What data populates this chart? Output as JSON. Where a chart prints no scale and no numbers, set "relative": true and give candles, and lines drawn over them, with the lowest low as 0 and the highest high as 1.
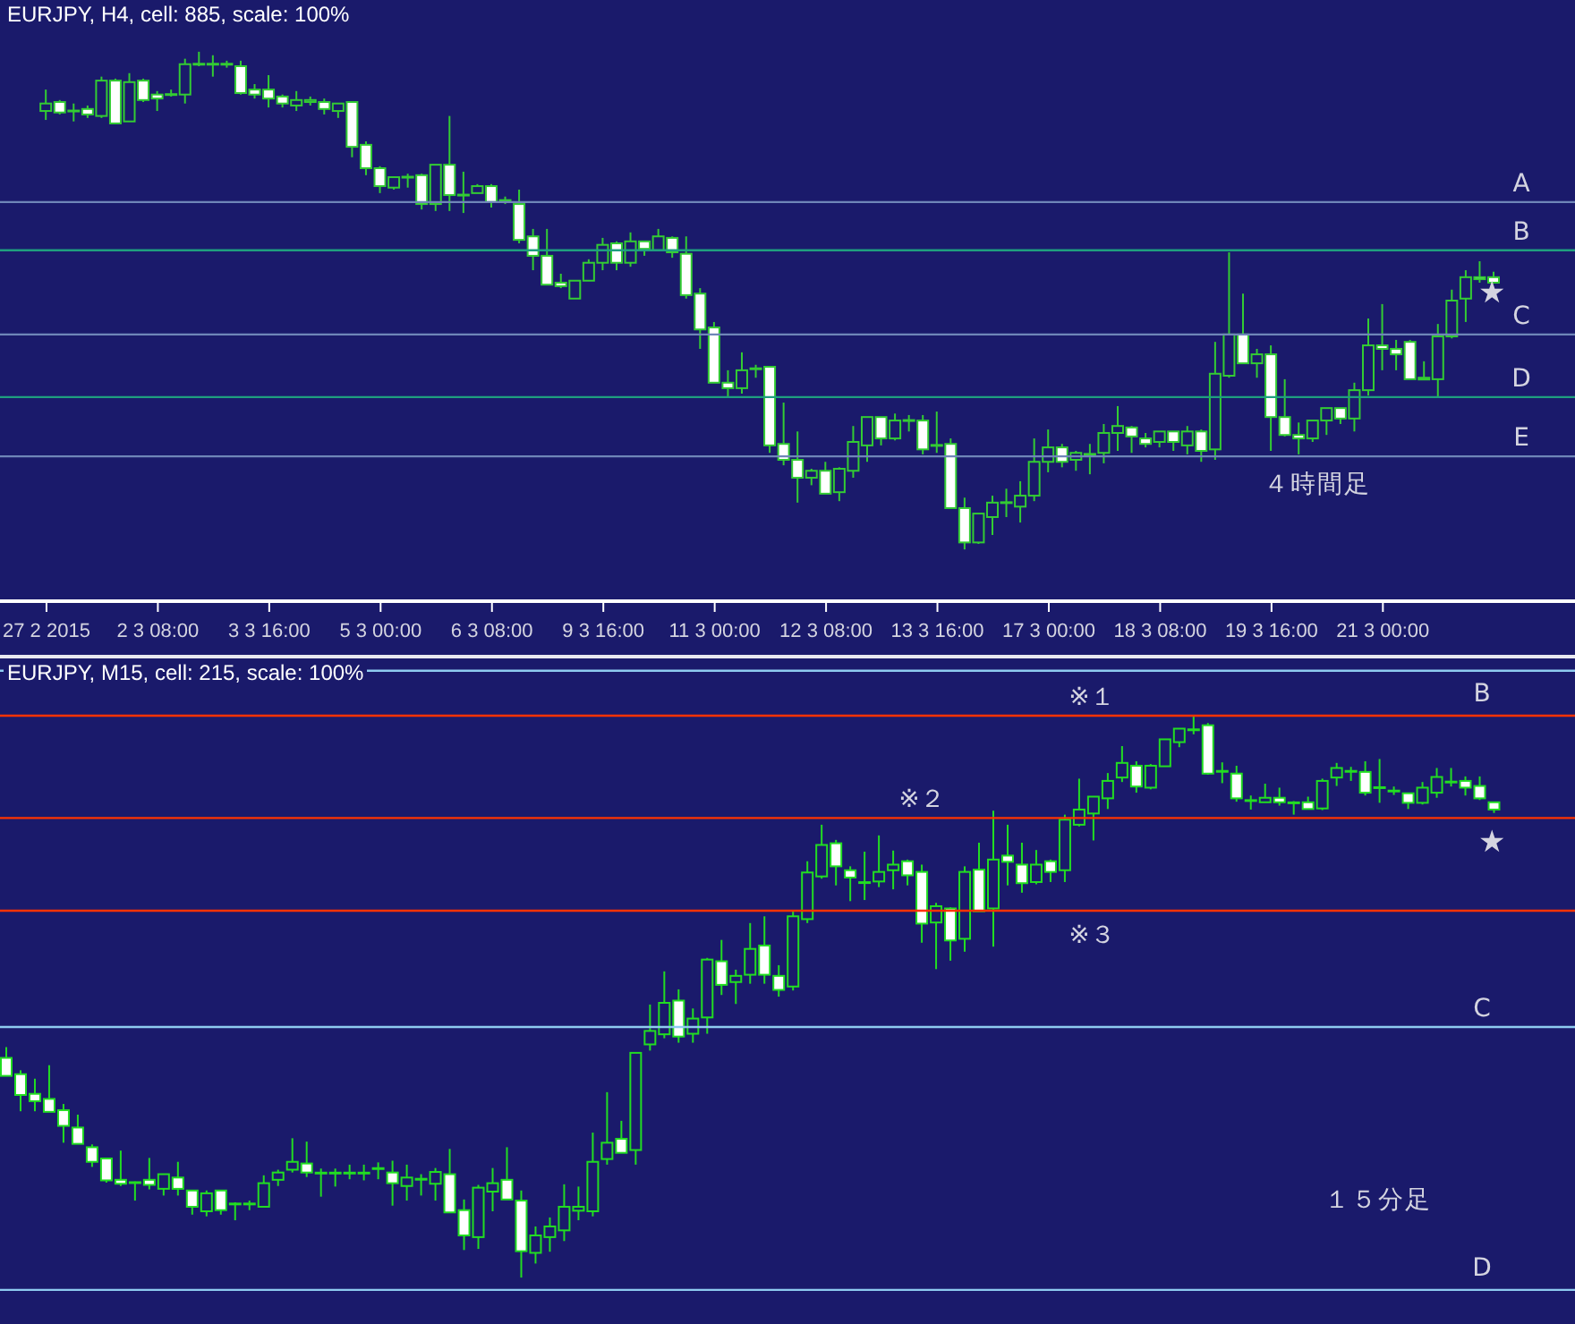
{
  "chart_data": [
    {
      "type": "candlestick",
      "title": "EURJPY, H4, cell: 885, scale: 100%",
      "relative": true,
      "color": "#33cc33",
      "categories": [
        "27 2 2015",
        null,
        null,
        null,
        null,
        null,
        null,
        null,
        "2 3 08:00",
        null,
        null,
        null,
        null,
        null,
        null,
        null,
        "3 3 16:00",
        null,
        null,
        null,
        null,
        null,
        null,
        null,
        "5 3 00:00",
        null,
        null,
        null,
        null,
        null,
        null,
        null,
        "6 3 08:00",
        null,
        null,
        null,
        null,
        null,
        null,
        null,
        "9 3 16:00",
        null,
        null,
        null,
        null,
        null,
        null,
        null,
        "11 3 00:00",
        null,
        null,
        null,
        null,
        null,
        null,
        null,
        "12 3 08:00",
        null,
        null,
        null,
        null,
        null,
        null,
        null,
        "13 3 16:00",
        null,
        null,
        null,
        null,
        null,
        null,
        null,
        "17 3 00:00",
        null,
        null,
        null,
        null,
        null,
        null,
        null,
        "18 3 08:00",
        null,
        null,
        null,
        null,
        null,
        null,
        null,
        "19 3 16:00",
        null,
        null,
        null,
        null,
        null,
        null,
        null,
        "21 3 00:00",
        null,
        null,
        null,
        null,
        null,
        null,
        null,
        null
      ],
      "ohlc": [
        [
          0.881,
          0.924,
          0.863,
          0.896
        ],
        [
          0.899,
          0.903,
          0.874,
          0.878
        ],
        [
          0.881,
          0.896,
          0.86,
          0.881
        ],
        [
          0.885,
          0.892,
          0.867,
          0.874
        ],
        [
          0.871,
          0.95,
          0.867,
          0.942
        ],
        [
          0.942,
          0.946,
          0.856,
          0.856
        ],
        [
          0.86,
          0.957,
          0.86,
          0.939
        ],
        [
          0.942,
          0.946,
          0.899,
          0.903
        ],
        [
          0.914,
          0.921,
          0.881,
          0.906
        ],
        [
          0.914,
          0.924,
          0.91,
          0.914
        ],
        [
          0.914,
          0.986,
          0.896,
          0.975
        ],
        [
          0.975,
          1,
          0.971,
          0.975
        ],
        [
          0.975,
          0.993,
          0.95,
          0.975
        ],
        [
          0.975,
          0.982,
          0.968,
          0.975
        ],
        [
          0.971,
          0.982,
          0.914,
          0.917
        ],
        [
          0.924,
          0.935,
          0.906,
          0.914
        ],
        [
          0.924,
          0.953,
          0.888,
          0.906
        ],
        [
          0.91,
          0.914,
          0.888,
          0.896
        ],
        [
          0.892,
          0.921,
          0.881,
          0.903
        ],
        [
          0.899,
          0.91,
          0.892,
          0.903
        ],
        [
          0.899,
          0.906,
          0.874,
          0.885
        ],
        [
          0.881,
          0.896,
          0.867,
          0.896
        ],
        [
          0.899,
          0.899,
          0.788,
          0.809
        ],
        [
          0.813,
          0.82,
          0.752,
          0.766
        ],
        [
          0.766,
          0.77,
          0.716,
          0.73
        ],
        [
          0.727,
          0.748,
          0.723,
          0.748
        ],
        [
          0.748,
          0.755,
          0.727,
          0.748
        ],
        [
          0.752,
          0.755,
          0.683,
          0.694
        ],
        [
          0.694,
          0.773,
          0.68,
          0.773
        ],
        [
          0.773,
          0.871,
          0.68,
          0.712
        ],
        [
          0.712,
          0.759,
          0.676,
          0.712
        ],
        [
          0.716,
          0.734,
          0.716,
          0.73
        ],
        [
          0.73,
          0.734,
          0.687,
          0.698
        ],
        [
          0.701,
          0.709,
          0.694,
          0.701
        ],
        [
          0.694,
          0.723,
          0.615,
          0.622
        ],
        [
          0.629,
          0.644,
          0.561,
          0.59
        ],
        [
          0.59,
          0.644,
          0.532,
          0.532
        ],
        [
          0.536,
          0.554,
          0.525,
          0.529
        ],
        [
          0.504,
          0.54,
          0.504,
          0.54
        ],
        [
          0.54,
          0.583,
          0.54,
          0.576
        ],
        [
          0.576,
          0.626,
          0.561,
          0.612
        ],
        [
          0.615,
          0.619,
          0.561,
          0.576
        ],
        [
          0.576,
          0.637,
          0.568,
          0.619
        ],
        [
          0.619,
          0.619,
          0.59,
          0.604
        ],
        [
          0.601,
          0.644,
          0.601,
          0.629
        ],
        [
          0.626,
          0.629,
          0.586,
          0.597
        ],
        [
          0.594,
          0.629,
          0.504,
          0.511
        ],
        [
          0.514,
          0.525,
          0.403,
          0.442
        ],
        [
          0.446,
          0.457,
          0.335,
          0.335
        ],
        [
          0.335,
          0.36,
          0.306,
          0.324
        ],
        [
          0.324,
          0.396,
          0.313,
          0.36
        ],
        [
          0.363,
          0.371,
          0.345,
          0.363
        ],
        [
          0.367,
          0.367,
          0.194,
          0.209
        ],
        [
          0.212,
          0.295,
          0.169,
          0.18
        ],
        [
          0.18,
          0.237,
          0.094,
          0.144
        ],
        [
          0.144,
          0.162,
          0.129,
          0.158
        ],
        [
          0.158,
          0.176,
          0.112,
          0.112
        ],
        [
          0.115,
          0.165,
          0.097,
          0.162
        ],
        [
          0.158,
          0.248,
          0.144,
          0.216
        ],
        [
          0.209,
          0.266,
          0.176,
          0.266
        ],
        [
          0.266,
          0.266,
          0.209,
          0.223
        ],
        [
          0.223,
          0.273,
          0.219,
          0.259
        ],
        [
          0.259,
          0.27,
          0.237,
          0.259
        ],
        [
          0.259,
          0.27,
          0.191,
          0.201
        ],
        [
          0.209,
          0.277,
          0.194,
          0.209
        ],
        [
          0.212,
          0.223,
          0.083,
          0.083
        ],
        [
          0.083,
          0.104,
          0,
          0.014
        ],
        [
          0.014,
          0.072,
          0.011,
          0.072
        ],
        [
          0.065,
          0.108,
          0.029,
          0.094
        ],
        [
          0.094,
          0.122,
          0.065,
          0.094
        ],
        [
          0.086,
          0.137,
          0.054,
          0.108
        ],
        [
          0.108,
          0.223,
          0.097,
          0.176
        ],
        [
          0.176,
          0.241,
          0.155,
          0.205
        ],
        [
          0.205,
          0.212,
          0.165,
          0.176
        ],
        [
          0.18,
          0.198,
          0.158,
          0.194
        ],
        [
          0.191,
          0.212,
          0.151,
          0.191
        ],
        [
          0.194,
          0.252,
          0.173,
          0.234
        ],
        [
          0.234,
          0.288,
          0.198,
          0.248
        ],
        [
          0.245,
          0.248,
          0.194,
          0.227
        ],
        [
          0.223,
          0.234,
          0.205,
          0.212
        ],
        [
          0.216,
          0.237,
          0.205,
          0.237
        ],
        [
          0.237,
          0.237,
          0.198,
          0.216
        ],
        [
          0.209,
          0.248,
          0.191,
          0.237
        ],
        [
          0.237,
          0.241,
          0.176,
          0.198
        ],
        [
          0.201,
          0.417,
          0.18,
          0.353
        ],
        [
          0.349,
          0.597,
          0.345,
          0.432
        ],
        [
          0.432,
          0.514,
          0.374,
          0.374
        ],
        [
          0.374,
          0.403,
          0.345,
          0.392
        ],
        [
          0.392,
          0.41,
          0.198,
          0.266
        ],
        [
          0.266,
          0.342,
          0.227,
          0.23
        ],
        [
          0.23,
          0.255,
          0.191,
          0.223
        ],
        [
          0.223,
          0.259,
          0.216,
          0.259
        ],
        [
          0.259,
          0.284,
          0.23,
          0.284
        ],
        [
          0.284,
          0.284,
          0.252,
          0.263
        ],
        [
          0.263,
          0.335,
          0.237,
          0.32
        ],
        [
          0.32,
          0.464,
          0.309,
          0.41
        ],
        [
          0.41,
          0.493,
          0.36,
          0.403
        ],
        [
          0.403,
          0.421,
          0.36,
          0.392
        ],
        [
          0.417,
          0.421,
          0.342,
          0.342
        ],
        [
          0.342,
          0.378,
          0.342,
          0.345
        ],
        [
          0.342,
          0.453,
          0.306,
          0.428
        ],
        [
          0.428,
          0.522,
          0.424,
          0.5
        ],
        [
          0.504,
          0.561,
          0.457,
          0.547
        ],
        [
          0.547,
          0.579,
          0.536,
          0.543
        ],
        [
          0.547,
          0.558,
          0.536,
          0.536
        ]
      ],
      "ref_lines": [
        {
          "axis": "y",
          "value": 0.698,
          "label": "A",
          "color": "#6f86b8"
        },
        {
          "axis": "y",
          "value": 0.601,
          "label": "B",
          "color": "#1f9f7f"
        },
        {
          "axis": "y",
          "value": 0.432,
          "label": "C",
          "color": "#6f86b8"
        },
        {
          "axis": "y",
          "value": 0.306,
          "label": "D",
          "color": "#1f9f7f"
        },
        {
          "axis": "y",
          "value": 0.187,
          "label": "E",
          "color": "#6f86b8"
        }
      ],
      "annotations": [
        "★",
        "４時間足"
      ]
    },
    {
      "type": "candlestick",
      "title": "EURJPY, M15, cell: 215, scale: 100%",
      "relative": true,
      "color": "#22dd22",
      "categories": [
        null,
        null,
        null,
        null,
        null,
        null,
        null,
        null,
        null,
        null,
        null,
        null,
        null,
        null,
        null,
        null,
        null,
        null,
        null,
        null,
        null,
        null,
        null,
        null,
        null,
        null,
        null,
        null,
        null,
        null,
        null,
        null,
        null,
        null,
        null,
        null,
        null,
        null,
        null,
        null,
        null,
        null,
        null,
        null,
        null,
        null,
        null,
        null,
        null,
        null,
        null,
        null,
        null,
        null,
        null,
        null,
        null,
        null,
        null,
        null,
        null,
        null,
        null,
        null,
        null,
        null,
        null,
        null,
        null,
        null,
        null,
        null,
        null,
        null,
        null,
        null,
        null,
        null,
        null,
        null,
        null,
        null,
        null,
        null,
        null,
        null,
        null,
        null,
        null,
        null,
        null,
        null,
        null,
        null,
        null,
        null,
        null,
        null,
        null,
        null,
        null,
        null,
        null,
        null,
        null
      ],
      "ohlc": [
        [
          0.391,
          0.41,
          0.359,
          0.359
        ],
        [
          0.362,
          0.369,
          0.296,
          0.325
        ],
        [
          0.327,
          0.354,
          0.296,
          0.314
        ],
        [
          0.318,
          0.378,
          0.295,
          0.295
        ],
        [
          0.298,
          0.309,
          0.24,
          0.27
        ],
        [
          0.267,
          0.29,
          0.238,
          0.238
        ],
        [
          0.232,
          0.237,
          0.197,
          0.206
        ],
        [
          0.212,
          0.212,
          0.169,
          0.173
        ],
        [
          0.174,
          0.226,
          0.163,
          0.167
        ],
        [
          0.169,
          0.171,
          0.137,
          0.169
        ],
        [
          0.174,
          0.213,
          0.157,
          0.165
        ],
        [
          0.158,
          0.184,
          0.146,
          0.184
        ],
        [
          0.178,
          0.206,
          0.146,
          0.158
        ],
        [
          0.155,
          0.155,
          0.112,
          0.126
        ],
        [
          0.118,
          0.155,
          0.109,
          0.15
        ],
        [
          0.155,
          0.155,
          0.112,
          0.12
        ],
        [
          0.131,
          0.134,
          0.102,
          0.131
        ],
        [
          0.131,
          0.137,
          0.12,
          0.131
        ],
        [
          0.126,
          0.182,
          0.126,
          0.168
        ],
        [
          0.174,
          0.192,
          0.163,
          0.187
        ],
        [
          0.192,
          0.248,
          0.187,
          0.206
        ],
        [
          0.203,
          0.242,
          0.179,
          0.187
        ],
        [
          0.186,
          0.194,
          0.144,
          0.186
        ],
        [
          0.186,
          0.194,
          0.162,
          0.186
        ],
        [
          0.186,
          0.201,
          0.175,
          0.186
        ],
        [
          0.186,
          0.201,
          0.173,
          0.186
        ],
        [
          0.194,
          0.205,
          0.175,
          0.194
        ],
        [
          0.187,
          0.208,
          0.128,
          0.168
        ],
        [
          0.163,
          0.201,
          0.137,
          0.178
        ],
        [
          0.175,
          0.184,
          0.146,
          0.175
        ],
        [
          0.167,
          0.195,
          0.137,
          0.188
        ],
        [
          0.184,
          0.229,
          0.116,
          0.116
        ],
        [
          0.12,
          0.139,
          0.049,
          0.075
        ],
        [
          0.072,
          0.165,
          0.051,
          0.16
        ],
        [
          0.153,
          0.195,
          0.118,
          0.168
        ],
        [
          0.174,
          0.232,
          0.139,
          0.139
        ],
        [
          0.137,
          0.155,
          0,
          0.047
        ],
        [
          0.044,
          0.091,
          0.025,
          0.075
        ],
        [
          0.072,
          0.107,
          0.046,
          0.091
        ],
        [
          0.084,
          0.166,
          0.065,
          0.126
        ],
        [
          0.119,
          0.162,
          0.102,
          0.126
        ],
        [
          0.118,
          0.258,
          0.109,
          0.206
        ],
        [
          0.211,
          0.33,
          0.201,
          0.24
        ],
        [
          0.247,
          0.279,
          0.222,
          0.222
        ],
        [
          0.227,
          0.4,
          0.201,
          0.4
        ],
        [
          0.415,
          0.486,
          0.404,
          0.439
        ],
        [
          0.433,
          0.545,
          0.426,
          0.489
        ],
        [
          0.493,
          0.513,
          0.418,
          0.429
        ],
        [
          0.434,
          0.479,
          0.418,
          0.461
        ],
        [
          0.463,
          0.569,
          0.434,
          0.566
        ],
        [
          0.563,
          0.601,
          0.503,
          0.521
        ],
        [
          0.526,
          0.548,
          0.487,
          0.537
        ],
        [
          0.539,
          0.631,
          0.523,
          0.585
        ],
        [
          0.591,
          0.643,
          0.523,
          0.539
        ],
        [
          0.537,
          0.556,
          0.5,
          0.512
        ],
        [
          0.518,
          0.654,
          0.511,
          0.643
        ],
        [
          0.638,
          0.741,
          0.631,
          0.721
        ],
        [
          0.714,
          0.806,
          0.71,
          0.77
        ],
        [
          0.773,
          0.779,
          0.698,
          0.732
        ],
        [
          0.725,
          0.732,
          0.67,
          0.712
        ],
        [
          0.703,
          0.758,
          0.672,
          0.703
        ],
        [
          0.705,
          0.787,
          0.695,
          0.722
        ],
        [
          0.725,
          0.76,
          0.691,
          0.735
        ],
        [
          0.741,
          0.744,
          0.698,
          0.716
        ],
        [
          0.722,
          0.735,
          0.596,
          0.63
        ],
        [
          0.632,
          0.667,
          0.549,
          0.661
        ],
        [
          0.657,
          0.659,
          0.564,
          0.6
        ],
        [
          0.603,
          0.732,
          0.58,
          0.722
        ],
        [
          0.726,
          0.774,
          0.652,
          0.652
        ],
        [
          0.657,
          0.831,
          0.589,
          0.744
        ],
        [
          0.751,
          0.806,
          0.698,
          0.74
        ],
        [
          0.735,
          0.774,
          0.685,
          0.702
        ],
        [
          0.704,
          0.761,
          0.7,
          0.735
        ],
        [
          0.741,
          0.744,
          0.704,
          0.722
        ],
        [
          0.725,
          0.824,
          0.704,
          0.815
        ],
        [
          0.806,
          0.888,
          0.803,
          0.833
        ],
        [
          0.826,
          0.856,
          0.778,
          0.856
        ],
        [
          0.853,
          0.898,
          0.834,
          0.884
        ],
        [
          0.89,
          0.946,
          0.882,
          0.916
        ],
        [
          0.911,
          0.919,
          0.863,
          0.874
        ],
        [
          0.872,
          0.914,
          0.869,
          0.911
        ],
        [
          0.91,
          0.958,
          0.91,
          0.958
        ],
        [
          0.953,
          0.977,
          0.944,
          0.977
        ],
        [
          0.975,
          1,
          0.967,
          0.975
        ],
        [
          0.983,
          0.987,
          0.895,
          0.897
        ],
        [
          0.901,
          0.917,
          0.88,
          0.901
        ],
        [
          0.897,
          0.911,
          0.847,
          0.853
        ],
        [
          0.849,
          0.858,
          0.833,
          0.849
        ],
        [
          0.846,
          0.879,
          0.846,
          0.854
        ],
        [
          0.854,
          0.872,
          0.84,
          0.846
        ],
        [
          0.845,
          0.848,
          0.824,
          0.845
        ],
        [
          0.846,
          0.856,
          0.834,
          0.834
        ],
        [
          0.835,
          0.888,
          0.832,
          0.884
        ],
        [
          0.89,
          0.916,
          0.875,
          0.907
        ],
        [
          0.901,
          0.909,
          0.884,
          0.901
        ],
        [
          0.9,
          0.919,
          0.858,
          0.863
        ],
        [
          0.872,
          0.923,
          0.845,
          0.872
        ],
        [
          0.866,
          0.874,
          0.859,
          0.866
        ],
        [
          0.862,
          0.862,
          0.834,
          0.845
        ],
        [
          0.845,
          0.882,
          0.842,
          0.872
        ],
        [
          0.863,
          0.907,
          0.854,
          0.891
        ],
        [
          0.882,
          0.907,
          0.874,
          0.882
        ],
        [
          0.884,
          0.892,
          0.858,
          0.872
        ],
        [
          0.875,
          0.892,
          0.85,
          0.853
        ],
        [
          0.846,
          0.846,
          0.827,
          0.833
        ]
      ],
      "ref_lines": [
        {
          "axis": "y",
          "value": 1.08,
          "label": "B",
          "color": "#8ecbf0"
        },
        {
          "axis": "y",
          "value": 0.446,
          "label": "C",
          "color": "#8ecbf0"
        },
        {
          "axis": "y",
          "value": -0.022,
          "label": "D",
          "color": "#8ecbf0"
        },
        {
          "axis": "y",
          "value": 1,
          "label": "※１",
          "color": "#ff3300"
        },
        {
          "axis": "y",
          "value": 0.818,
          "label": "※２",
          "color": "#ff3300"
        },
        {
          "axis": "y",
          "value": 0.653,
          "label": "※３",
          "color": "#ff3300"
        }
      ],
      "annotations": [
        "★",
        "１５分足"
      ]
    }
  ]
}
